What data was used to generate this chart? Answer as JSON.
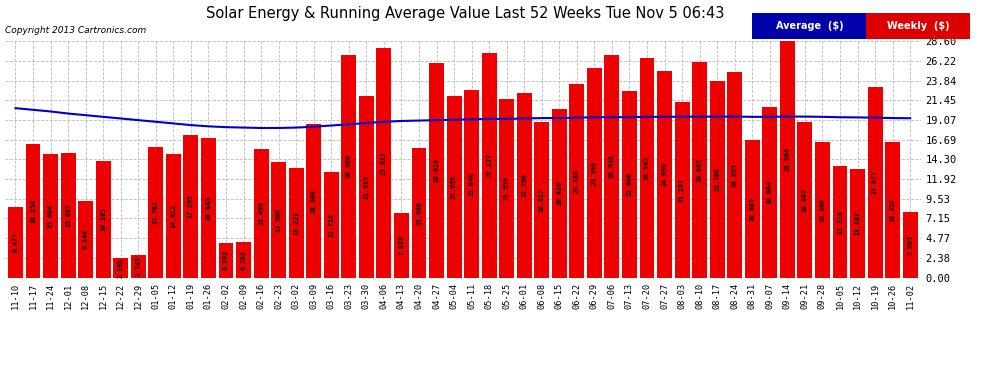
{
  "title": "Solar Energy & Running Average Value Last 52 Weeks Tue Nov 5 06:43",
  "copyright": "Copyright 2013 Cartronics.com",
  "bar_color": "#ee0000",
  "avg_line_color": "#0000cc",
  "background_color": "#ffffff",
  "plot_bg_color": "#ffffff",
  "grid_color": "#bbbbbb",
  "ytick_vals": [
    0.0,
    2.38,
    4.77,
    7.15,
    9.53,
    11.92,
    14.3,
    16.69,
    19.07,
    21.45,
    23.84,
    26.22,
    28.6
  ],
  "categories": [
    "11-10",
    "11-17",
    "11-24",
    "12-01",
    "12-08",
    "12-15",
    "12-22",
    "12-29",
    "01-05",
    "01-12",
    "01-19",
    "01-26",
    "02-02",
    "02-09",
    "02-16",
    "02-23",
    "03-02",
    "03-09",
    "03-16",
    "03-23",
    "03-30",
    "04-06",
    "04-13",
    "04-20",
    "04-27",
    "05-04",
    "05-11",
    "05-18",
    "05-25",
    "06-01",
    "06-08",
    "06-15",
    "06-22",
    "06-29",
    "07-06",
    "07-13",
    "07-20",
    "07-27",
    "08-03",
    "08-10",
    "08-17",
    "08-24",
    "08-31",
    "09-07",
    "09-14",
    "09-21",
    "09-28",
    "10-05",
    "10-12",
    "10-19",
    "10-26",
    "11-02"
  ],
  "values": [
    8.477,
    16.154,
    15.004,
    15.087,
    9.244,
    14.105,
    2.398,
    2.745,
    15.762,
    14.912,
    17.295,
    16.845,
    4.203,
    4.281,
    15.499,
    13.96,
    13.221,
    18.6,
    12.718,
    26.98,
    21.919,
    27.817,
    7.829,
    15.668,
    26.016,
    21.959,
    22.646,
    27.127,
    21.559,
    22.296,
    18.817,
    20.42,
    23.388,
    25.399,
    26.938,
    22.6,
    26.543,
    24.999,
    21.197,
    26.065,
    23.76,
    24.895,
    16.685,
    20.604,
    28.604,
    18.802,
    16.46,
    13.518,
    13.182,
    23.077,
    16.352,
    7.905
  ],
  "avg_values": [
    20.5,
    20.3,
    20.1,
    19.85,
    19.65,
    19.45,
    19.25,
    19.05,
    18.85,
    18.65,
    18.45,
    18.3,
    18.2,
    18.15,
    18.1,
    18.1,
    18.15,
    18.25,
    18.4,
    18.55,
    18.7,
    18.85,
    18.95,
    19.0,
    19.05,
    19.1,
    19.15,
    19.2,
    19.2,
    19.25,
    19.3,
    19.3,
    19.35,
    19.4,
    19.4,
    19.42,
    19.45,
    19.45,
    19.47,
    19.47,
    19.48,
    19.48,
    19.45,
    19.45,
    19.48,
    19.48,
    19.45,
    19.4,
    19.38,
    19.35,
    19.3,
    19.28
  ],
  "legend_avg_bg": "#0000aa",
  "legend_weekly_bg": "#dd0000",
  "legend_avg_text": "Average  ($)",
  "legend_weekly_text": "Weekly  ($)"
}
